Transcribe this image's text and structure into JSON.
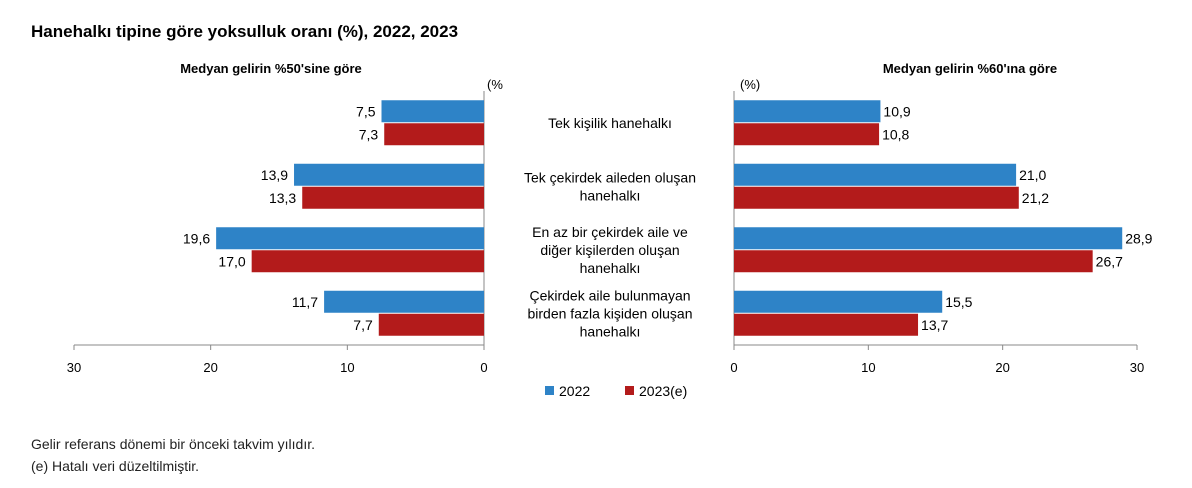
{
  "title": "Hanehalkı tipine göre yoksulluk oranı (%), 2022, 2023",
  "footnotes": [
    "Gelir referans dönemi bir önceki takvim yılıdır.",
    "(e) Hatalı veri düzeltilmiştir."
  ],
  "chart_data": [
    {
      "type": "bar",
      "orientation": "horizontal",
      "direction": "reversed",
      "title": "Medyan gelirin %50'sine göre",
      "unit_label": "(%",
      "categories": [
        "Tek kişilik hanehalkı",
        "Tek çekirdek aileden oluşan hanehalkı",
        "En az bir çekirdek aile ve diğer kişilerden oluşan hanehalkı",
        "Çekirdek aile bulunmayan birden fazla kişiden oluşan hanehalkı"
      ],
      "series": [
        {
          "name": "2022",
          "values": [
            7.5,
            13.9,
            19.6,
            11.7
          ],
          "labels": [
            "7,5",
            "13,9",
            "19,6",
            "11,7"
          ]
        },
        {
          "name": "2023(e)",
          "values": [
            7.3,
            13.3,
            17.0,
            7.7
          ],
          "labels": [
            "7,3",
            "13,3",
            "17,0",
            "7,7"
          ]
        }
      ],
      "xlim": [
        0,
        30
      ],
      "ticks": [
        "30",
        "20",
        "10",
        "0"
      ],
      "grid": false
    },
    {
      "type": "bar",
      "orientation": "horizontal",
      "title": "Medyan gelirin %60'ına göre",
      "unit_label": "(%)",
      "categories": [
        "Tek kişilik hanehalkı",
        "Tek çekirdek aileden oluşan hanehalkı",
        "En az bir çekirdek aile ve diğer kişilerden oluşan hanehalkı",
        "Çekirdek aile bulunmayan birden fazla kişiden oluşan hanehalkı"
      ],
      "series": [
        {
          "name": "2022",
          "values": [
            10.9,
            21.0,
            28.9,
            15.5
          ],
          "labels": [
            "10,9",
            "21,0",
            "28,9",
            "15,5"
          ]
        },
        {
          "name": "2023(e)",
          "values": [
            10.8,
            21.2,
            26.7,
            13.7
          ],
          "labels": [
            "10,8",
            "21,2",
            "26,7",
            "13,7"
          ]
        }
      ],
      "xlim": [
        0,
        30
      ],
      "ticks": [
        "0",
        "10",
        "20",
        "30"
      ],
      "grid": false
    }
  ],
  "category_lines": [
    [
      "Tek kişilik hanehalkı"
    ],
    [
      "Tek çekirdek aileden oluşan",
      "hanehalkı"
    ],
    [
      "En az bir çekirdek aile ve",
      "diğer kişilerden oluşan",
      "hanehalkı"
    ],
    [
      "Çekirdek aile bulunmayan",
      "birden fazla kişiden oluşan",
      "hanehalkı"
    ]
  ],
  "legend": [
    {
      "label": "2022",
      "color": "#2e83c7"
    },
    {
      "label": "2023(e)",
      "color": "#b31b1b"
    }
  ],
  "colors": {
    "s2022": "#2e83c7",
    "s2023": "#b31b1b",
    "axis": "#888888"
  }
}
